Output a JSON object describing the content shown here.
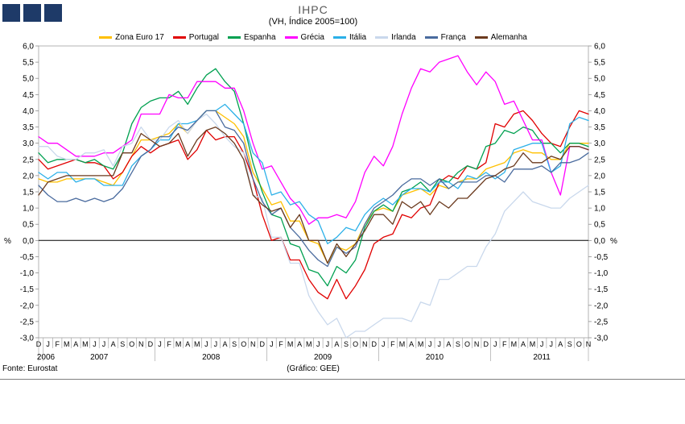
{
  "header": {
    "title": "IHPC",
    "subtitle": "(VH, Índice 2005=100)"
  },
  "footer": {
    "source": "Fonte: Eurostat",
    "credit": "(Gráfico: GEE)"
  },
  "axis": {
    "percent": "%"
  },
  "logo": {
    "color": "#1E3A68"
  },
  "chart_data": {
    "type": "line",
    "title": "IHPC",
    "subtitle": "(VH, Índice 2005=100)",
    "ylabel": "%",
    "ylim": [
      -3.0,
      6.0
    ],
    "y_tick_step": 0.5,
    "grid": false,
    "legend_position": "top",
    "y_tick_labels": [
      "6,0",
      "5,5",
      "5,0",
      "4,5",
      "4,0",
      "3,5",
      "3,0",
      "2,5",
      "2,0",
      "1,5",
      "1,0",
      "0,5",
      "0,0",
      "-0,5",
      "-1,0",
      "-1,5",
      "-2,0",
      "-2,5",
      "-3,0"
    ],
    "x_labels": [
      "D",
      "J",
      "F",
      "M",
      "A",
      "M",
      "J",
      "J",
      "A",
      "S",
      "O",
      "N",
      "D",
      "J",
      "F",
      "M",
      "A",
      "M",
      "J",
      "J",
      "A",
      "S",
      "O",
      "N",
      "D",
      "J",
      "F",
      "M",
      "A",
      "M",
      "J",
      "J",
      "A",
      "S",
      "O",
      "N",
      "D",
      "J",
      "F",
      "M",
      "A",
      "M",
      "J",
      "J",
      "A",
      "S",
      "O",
      "N",
      "D",
      "J",
      "F",
      "M",
      "A",
      "M",
      "J",
      "J",
      "A",
      "S",
      "O",
      "N"
    ],
    "years": [
      {
        "label": "2006",
        "start": 0,
        "end": 0
      },
      {
        "label": "2007",
        "start": 1,
        "end": 12
      },
      {
        "label": "2008",
        "start": 13,
        "end": 24
      },
      {
        "label": "2009",
        "start": 25,
        "end": 36
      },
      {
        "label": "2010",
        "start": 37,
        "end": 48
      },
      {
        "label": "2011",
        "start": 49,
        "end": 59
      }
    ],
    "series": [
      {
        "name": "Zona Euro 17",
        "color": "#FFC000",
        "values": [
          1.9,
          1.8,
          1.8,
          1.9,
          1.9,
          1.9,
          1.9,
          1.8,
          1.7,
          2.1,
          2.6,
          3.1,
          3.1,
          3.2,
          3.3,
          3.6,
          3.3,
          3.7,
          4.0,
          4.0,
          3.8,
          3.6,
          3.2,
          2.1,
          1.6,
          1.1,
          1.2,
          0.6,
          0.6,
          0.0,
          -0.1,
          -0.7,
          -0.2,
          -0.3,
          -0.1,
          0.5,
          0.9,
          1.0,
          0.9,
          1.4,
          1.5,
          1.6,
          1.4,
          1.7,
          1.6,
          1.8,
          1.9,
          1.9,
          2.2,
          2.3,
          2.4,
          2.7,
          2.8,
          2.7,
          2.7,
          2.5,
          2.5,
          3.0,
          3.0,
          3.0
        ]
      },
      {
        "name": "Portugal",
        "color": "#E00000",
        "values": [
          2.5,
          2.2,
          2.3,
          2.4,
          2.5,
          2.4,
          2.4,
          2.3,
          1.9,
          2.1,
          2.6,
          2.9,
          2.7,
          2.9,
          3.0,
          3.1,
          2.5,
          2.8,
          3.4,
          3.1,
          3.2,
          3.2,
          2.7,
          1.9,
          0.8,
          0.0,
          0.1,
          -0.6,
          -0.6,
          -1.2,
          -1.6,
          -1.8,
          -1.2,
          -1.8,
          -1.4,
          -0.9,
          -0.1,
          0.1,
          0.2,
          0.8,
          0.7,
          1.0,
          1.1,
          1.8,
          2.0,
          1.9,
          2.3,
          2.2,
          2.4,
          3.6,
          3.5,
          3.9,
          4.0,
          3.7,
          3.3,
          3.0,
          2.9,
          3.5,
          4.0,
          3.9
        ]
      },
      {
        "name": "Espanha",
        "color": "#00A050",
        "values": [
          2.7,
          2.4,
          2.5,
          2.5,
          2.5,
          2.4,
          2.5,
          2.3,
          2.2,
          2.7,
          3.6,
          4.1,
          4.3,
          4.4,
          4.4,
          4.6,
          4.2,
          4.7,
          5.1,
          5.3,
          4.9,
          4.6,
          3.6,
          2.4,
          1.5,
          0.8,
          0.7,
          -0.1,
          -0.2,
          -0.9,
          -1.0,
          -1.4,
          -0.8,
          -1.0,
          -0.6,
          0.4,
          0.9,
          1.1,
          0.9,
          1.5,
          1.6,
          1.8,
          1.5,
          1.9,
          1.8,
          2.1,
          2.3,
          2.2,
          2.9,
          3.0,
          3.4,
          3.3,
          3.5,
          3.4,
          3.0,
          3.0,
          2.7,
          3.0,
          3.0,
          2.9
        ]
      },
      {
        "name": "Grécia",
        "color": "#FF00FF",
        "values": [
          3.2,
          3.0,
          3.0,
          2.8,
          2.6,
          2.6,
          2.6,
          2.7,
          2.7,
          2.9,
          3.1,
          3.9,
          3.9,
          3.9,
          4.5,
          4.4,
          4.4,
          4.9,
          4.9,
          4.9,
          4.7,
          4.7,
          4.0,
          3.0,
          2.2,
          2.3,
          1.8,
          1.3,
          1.0,
          0.5,
          0.7,
          0.7,
          0.8,
          0.7,
          1.2,
          2.1,
          2.6,
          2.3,
          2.9,
          3.9,
          4.7,
          5.3,
          5.2,
          5.5,
          5.6,
          5.7,
          5.2,
          4.8,
          5.2,
          4.9,
          4.2,
          4.3,
          3.7,
          3.1,
          3.1,
          2.1,
          1.4,
          2.9,
          2.9,
          2.8
        ]
      },
      {
        "name": "Itália",
        "color": "#2BB0E8",
        "values": [
          2.1,
          1.9,
          2.1,
          2.1,
          1.8,
          1.9,
          1.9,
          1.7,
          1.7,
          1.7,
          2.3,
          2.6,
          2.8,
          3.1,
          3.1,
          3.6,
          3.6,
          3.7,
          4.0,
          4.0,
          4.2,
          3.9,
          3.6,
          2.7,
          2.4,
          1.4,
          1.5,
          1.1,
          1.2,
          0.8,
          0.6,
          -0.1,
          0.1,
          0.4,
          0.3,
          0.8,
          1.1,
          1.3,
          1.1,
          1.4,
          1.6,
          1.6,
          1.5,
          1.8,
          1.8,
          1.6,
          2.0,
          1.9,
          2.1,
          1.9,
          2.1,
          2.8,
          2.9,
          3.0,
          3.0,
          2.1,
          2.3,
          3.6,
          3.8,
          3.7
        ]
      },
      {
        "name": "Irlanda",
        "color": "#C9D8EC",
        "values": [
          2.9,
          2.9,
          2.6,
          2.5,
          2.5,
          2.7,
          2.7,
          2.8,
          2.3,
          2.9,
          3.0,
          3.5,
          3.1,
          3.1,
          3.5,
          3.7,
          3.3,
          3.7,
          3.9,
          3.6,
          3.2,
          2.9,
          2.7,
          1.4,
          1.3,
          0.1,
          0.1,
          -0.7,
          -0.7,
          -1.7,
          -2.2,
          -2.6,
          -2.4,
          -3.0,
          -2.8,
          -2.8,
          -2.6,
          -2.4,
          -2.4,
          -2.4,
          -2.5,
          -1.9,
          -2.0,
          -1.2,
          -1.2,
          -1.0,
          -0.8,
          -0.8,
          -0.2,
          0.2,
          0.9,
          1.2,
          1.5,
          1.2,
          1.1,
          1.0,
          1.0,
          1.3,
          1.5,
          1.7
        ]
      },
      {
        "name": "França",
        "color": "#4A6B9E",
        "values": [
          1.7,
          1.4,
          1.2,
          1.2,
          1.3,
          1.2,
          1.3,
          1.2,
          1.3,
          1.6,
          2.1,
          2.6,
          2.8,
          3.2,
          3.2,
          3.5,
          3.4,
          3.7,
          4.0,
          4.0,
          3.5,
          3.4,
          3.0,
          1.9,
          1.2,
          0.8,
          1.0,
          0.4,
          0.1,
          -0.3,
          -0.6,
          -0.8,
          -0.2,
          -0.4,
          -0.2,
          0.5,
          1.0,
          1.2,
          1.4,
          1.7,
          1.9,
          1.9,
          1.7,
          1.9,
          1.6,
          1.8,
          1.8,
          1.8,
          2.0,
          2.0,
          1.8,
          2.2,
          2.2,
          2.2,
          2.3,
          2.1,
          2.4,
          2.4,
          2.5,
          2.7
        ]
      },
      {
        "name": "Alemanha",
        "color": "#6B3A1E",
        "values": [
          1.4,
          1.8,
          1.9,
          2.0,
          2.0,
          2.0,
          2.0,
          2.0,
          2.0,
          2.7,
          2.7,
          3.3,
          3.1,
          2.9,
          3.0,
          3.3,
          2.6,
          3.1,
          3.4,
          3.5,
          3.3,
          3.0,
          2.5,
          1.4,
          1.1,
          0.9,
          1.0,
          0.4,
          0.8,
          0.0,
          0.0,
          -0.7,
          -0.1,
          -0.5,
          -0.1,
          0.3,
          0.8,
          0.8,
          0.5,
          1.2,
          1.0,
          1.2,
          0.8,
          1.2,
          1.0,
          1.3,
          1.3,
          1.6,
          1.9,
          2.0,
          2.2,
          2.3,
          2.7,
          2.4,
          2.4,
          2.6,
          2.5,
          2.9,
          2.9,
          2.8
        ]
      }
    ]
  }
}
